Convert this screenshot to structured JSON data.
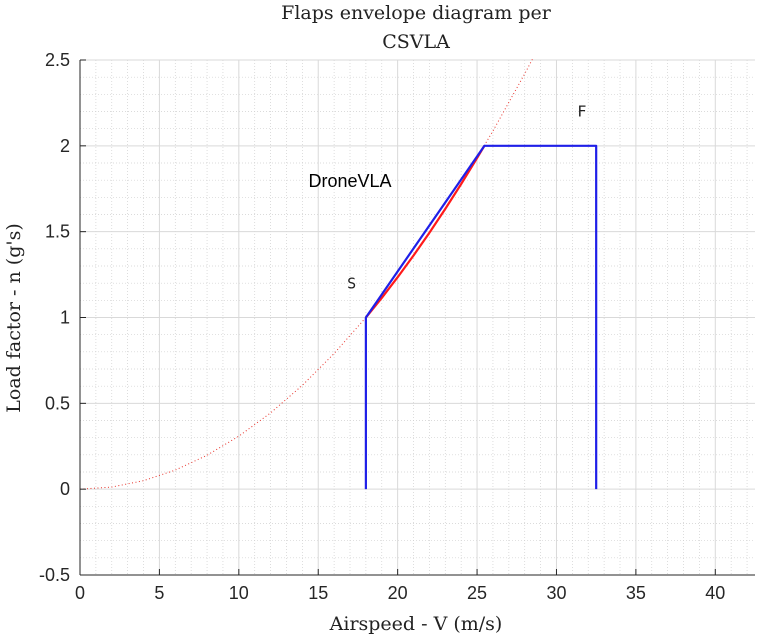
{
  "chart_data": {
    "type": "line",
    "title": [
      "Flaps envelope diagram per",
      "CSVLA"
    ],
    "xlabel": "Airspeed - V (m/s)",
    "ylabel": "Load factor - n (g's)",
    "xlim": [
      0,
      42.5
    ],
    "ylim": [
      -0.5,
      2.5
    ],
    "x_ticks": [
      0,
      5,
      10,
      15,
      20,
      25,
      30,
      35,
      40
    ],
    "x_tick_labels": [
      "0",
      "5",
      "10",
      "15",
      "20",
      "25",
      "30",
      "35",
      "40"
    ],
    "y_ticks": [
      -0.5,
      0,
      0.5,
      1,
      1.5,
      2,
      2.5
    ],
    "y_tick_labels": [
      "-0.5",
      "0",
      "0.5",
      "1",
      "1.5",
      "2",
      "2.5"
    ],
    "grid": true,
    "minor_grid": true,
    "stall_speed": 18.0,
    "series": [
      {
        "style": "dotted",
        "color": "#e8332b",
        "x": [
          0,
          2,
          4,
          6,
          8,
          10,
          12,
          14,
          16,
          18,
          20,
          22,
          24,
          26,
          28,
          28.5
        ],
        "y": [
          0,
          0.0123,
          0.0494,
          0.1111,
          0.1975,
          0.3086,
          0.4444,
          0.6049,
          0.7901,
          1.0,
          1.2346,
          1.4938,
          1.7778,
          2.0864,
          2.4198,
          2.5069
        ]
      },
      {
        "style": "solid",
        "color": "#ff1a1a",
        "x": [
          18,
          19,
          20,
          21,
          22,
          23,
          24,
          25,
          25.46
        ],
        "y": [
          1.0,
          1.1142,
          1.2346,
          1.3611,
          1.4938,
          1.6327,
          1.7778,
          1.929,
          2.0
        ]
      },
      {
        "style": "solid",
        "color": "#1f1fe8",
        "x": [
          18,
          18,
          18,
          25.46,
          32.5,
          32.5
        ],
        "y": [
          0,
          1.0,
          1.0,
          2.0,
          2.0,
          0
        ]
      }
    ],
    "annotations": [
      {
        "text": "S",
        "x": 17.1,
        "y": 1.17,
        "kind": "point"
      },
      {
        "text": "F",
        "x": 31.6,
        "y": 2.17,
        "kind": "point"
      },
      {
        "text": "DroneVLA",
        "x": 17.0,
        "y": 1.76,
        "kind": "label"
      }
    ]
  }
}
